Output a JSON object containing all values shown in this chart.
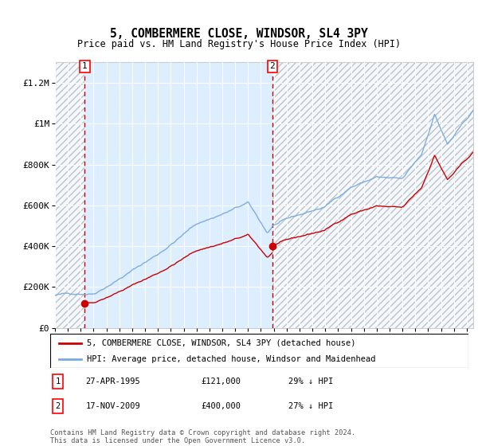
{
  "title": "5, COMBERMERE CLOSE, WINDSOR, SL4 3PY",
  "subtitle": "Price paid vs. HM Land Registry's House Price Index (HPI)",
  "legend_line1": "5, COMBERMERE CLOSE, WINDSOR, SL4 3PY (detached house)",
  "legend_line2": "HPI: Average price, detached house, Windsor and Maidenhead",
  "footer": "Contains HM Land Registry data © Crown copyright and database right 2024.\nThis data is licensed under the Open Government Licence v3.0.",
  "sale1_date": 1995.32,
  "sale1_price": 121000,
  "sale1_label": "27-APR-1995",
  "sale1_amount": "£121,000",
  "sale1_hpi": "29% ↓ HPI",
  "sale2_date": 2009.88,
  "sale2_price": 400000,
  "sale2_label": "17-NOV-2009",
  "sale2_amount": "£400,000",
  "sale2_hpi": "27% ↓ HPI",
  "ylim": [
    0,
    1300000
  ],
  "xlim_start": 1993.0,
  "xlim_end": 2025.5,
  "price_color": "#cc0000",
  "hpi_color": "#7aaadd",
  "bg_color": "#ddeeff",
  "yticks": [
    0,
    200000,
    400000,
    600000,
    800000,
    1000000,
    1200000
  ],
  "ytick_labels": [
    "£0",
    "£200K",
    "£400K",
    "£600K",
    "£800K",
    "£1M",
    "£1.2M"
  ]
}
